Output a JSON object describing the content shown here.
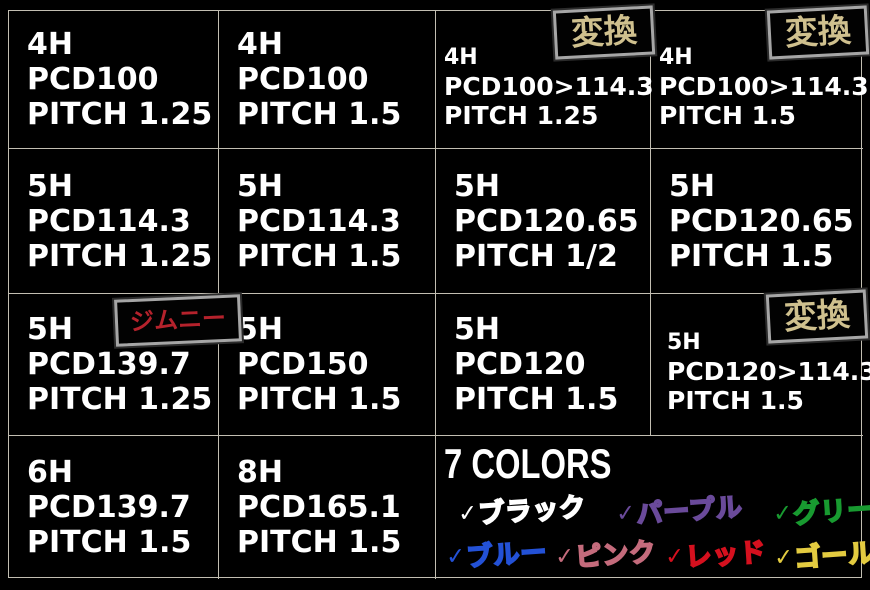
{
  "theme": {
    "background": "#000000",
    "text": "#ffffff",
    "grid_line": "#c2beb2",
    "badge_border": "#a6a6a6"
  },
  "badges": {
    "henkan": {
      "text": "変換",
      "color": "#cfc08e"
    },
    "jimny": {
      "text": "ジムニー",
      "color": "#b5222c"
    }
  },
  "cells": {
    "r1c1": {
      "h": "4H",
      "pcd": "PCD100",
      "pitch": "PITCH 1.25"
    },
    "r1c2": {
      "h": "4H",
      "pcd": "PCD100",
      "pitch": "PITCH 1.5"
    },
    "r1c3": {
      "h": "4H",
      "pcd": "PCD100>114.3",
      "pitch": "PITCH 1.25",
      "badge": "変換"
    },
    "r1c4": {
      "h": "4H",
      "pcd": "PCD100>114.3",
      "pitch": "PITCH 1.5",
      "badge": "変換"
    },
    "r2c1": {
      "h": "5H",
      "pcd": "PCD114.3",
      "pitch": "PITCH 1.25"
    },
    "r2c2": {
      "h": "5H",
      "pcd": "PCD114.3",
      "pitch": "PITCH 1.5"
    },
    "r2c3": {
      "h": "5H",
      "pcd": "PCD120.65",
      "pitch": "PITCH 1/2"
    },
    "r2c4": {
      "h": "5H",
      "pcd": "PCD120.65",
      "pitch": "PITCH 1.5"
    },
    "r3c1": {
      "h": "5H",
      "pcd": "PCD139.7",
      "pitch": "PITCH 1.25",
      "badge": "ジムニー"
    },
    "r3c2": {
      "h": "5H",
      "pcd": "PCD150",
      "pitch": "PITCH 1.5"
    },
    "r3c3": {
      "h": "5H",
      "pcd": "PCD120",
      "pitch": "PITCH 1.5"
    },
    "r3c4": {
      "h": "5H",
      "pcd": "PCD120>114.3",
      "pitch": "PITCH 1.5",
      "badge": "変換"
    },
    "r4c1": {
      "h": "6H",
      "pcd": "PCD139.7",
      "pitch": "PITCH 1.5"
    },
    "r4c2": {
      "h": "8H",
      "pcd": "PCD165.1",
      "pitch": "PITCH 1.5"
    }
  },
  "colors_section": {
    "title": "7 COLORS",
    "checkmark": "✓",
    "row1": [
      {
        "label": "ブラック",
        "color": "#ffffff"
      },
      {
        "label": "パープル",
        "color": "#6a4a9a"
      },
      {
        "label": "グリーン",
        "color": "#189a30"
      }
    ],
    "row2": [
      {
        "label": "ブルー",
        "color": "#2351d6"
      },
      {
        "label": "ピンク",
        "color": "#c46b7c"
      },
      {
        "label": "レッド",
        "color": "#d5101e"
      },
      {
        "label": "ゴールド",
        "color": "#e3cb40"
      }
    ]
  }
}
